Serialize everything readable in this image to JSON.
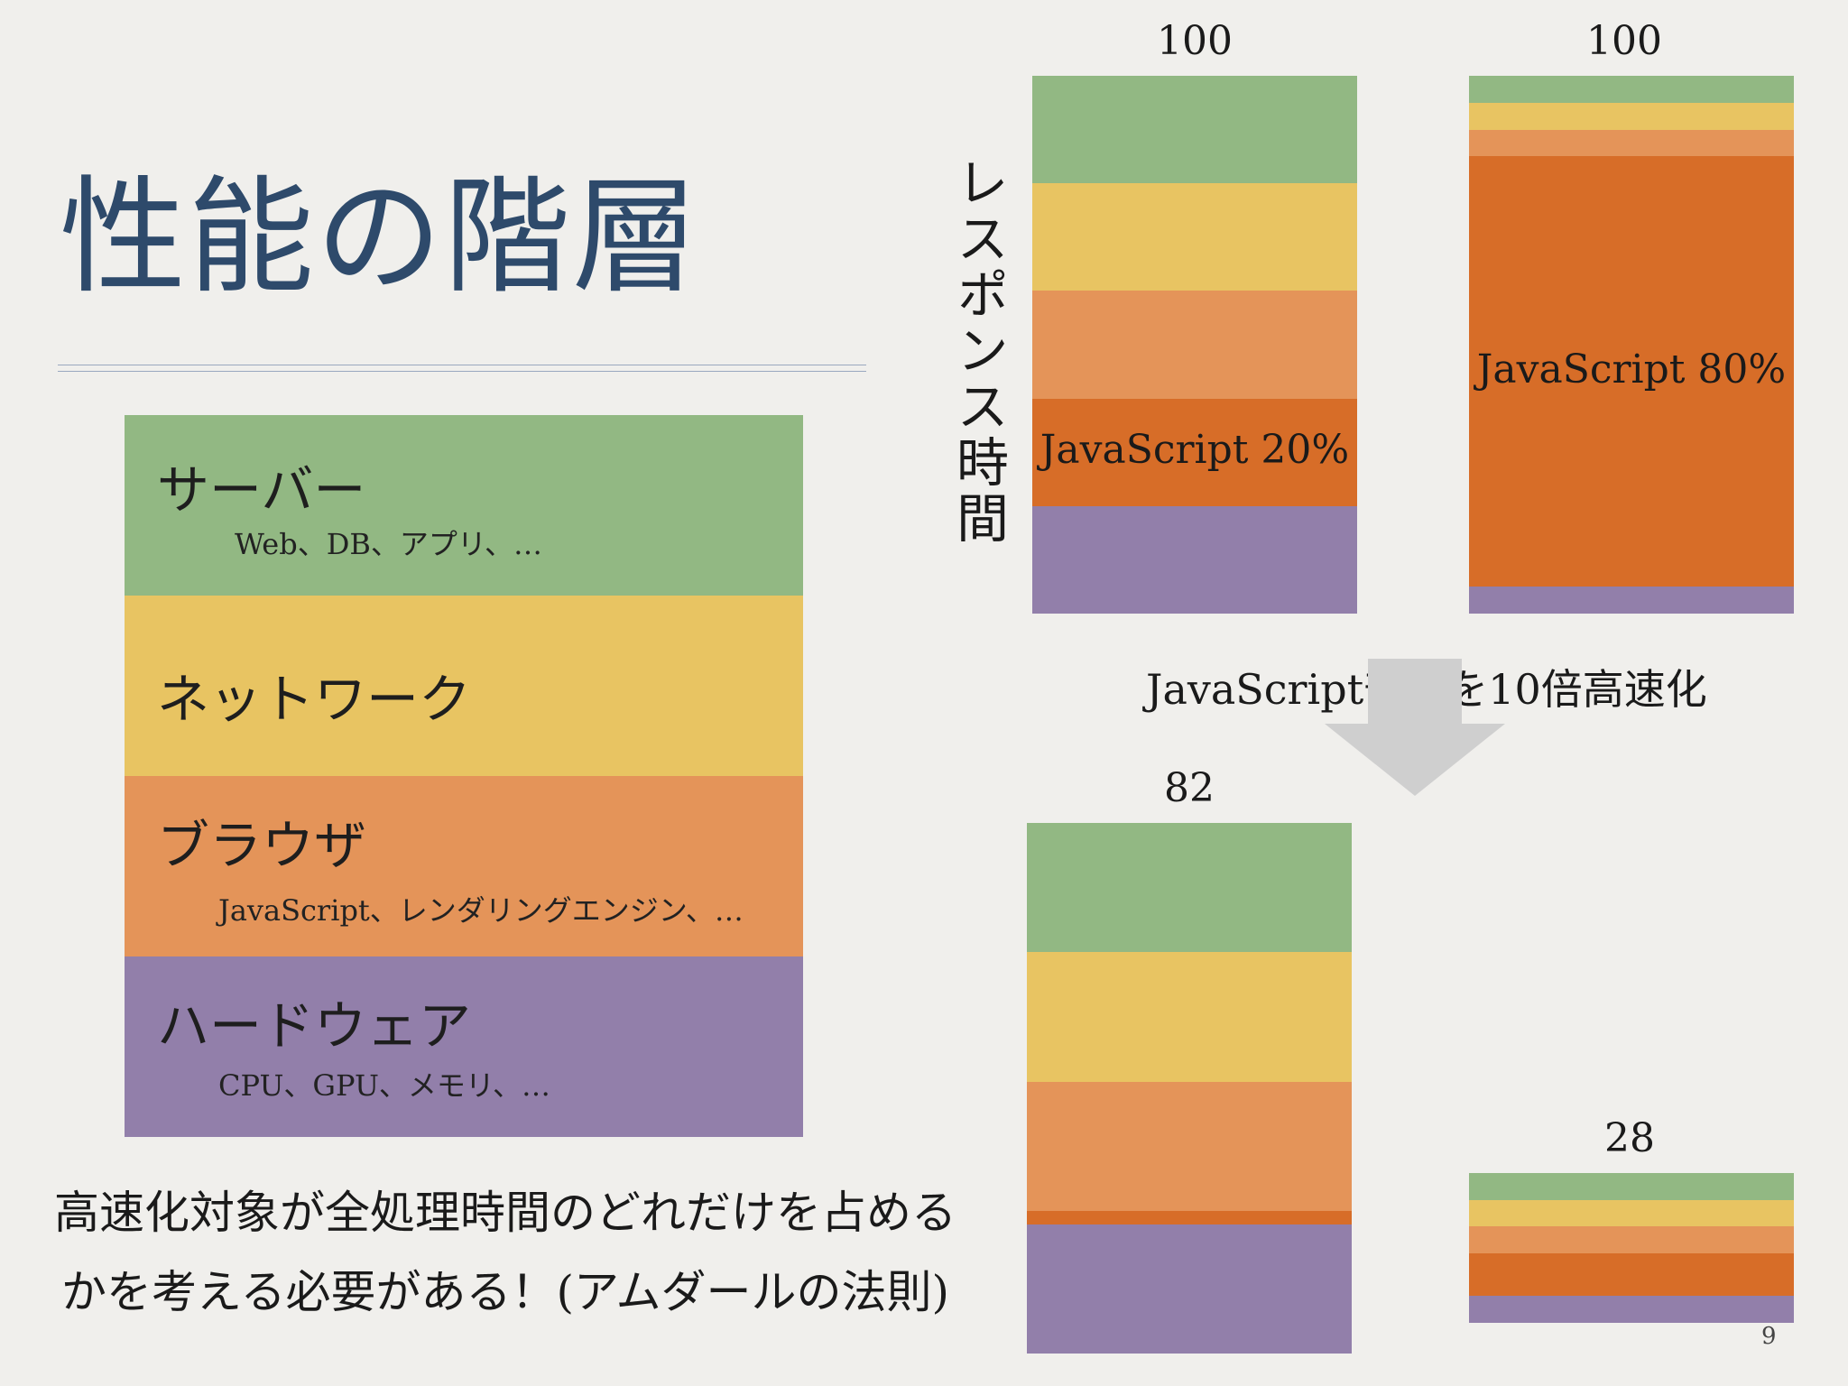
{
  "slide": {
    "title": "性能の階層",
    "page_number": "9",
    "note_line1": "高速化対象が全処理時間のどれだけを占める",
    "note_line2": "かを考える必要がある！(アムダールの法則)"
  },
  "layers": [
    {
      "name": "サーバー",
      "detail": "Web、DB、アプリ、…",
      "color": "#92b883"
    },
    {
      "name": "ネットワーク",
      "detail": "",
      "color": "#e8c462"
    },
    {
      "name": "ブラウザ",
      "detail": "JavaScript、レンダリングエンジン、…",
      "color": "#e49459"
    },
    {
      "name": "ハードウェア",
      "detail": "CPU、GPU、メモリ、…",
      "color": "#927faa"
    }
  ],
  "colors": {
    "server": "#92b883",
    "network": "#e8c462",
    "browser": "#e49459",
    "javascript": "#d76d28",
    "hardware": "#927faa",
    "arrow": "#cfcfcf"
  },
  "chart_data": {
    "type": "bar",
    "ylabel": "レスポンス時間",
    "arrow_caption": "JavaScript部分を10倍高速化",
    "bars": [
      {
        "total": "100",
        "segments": [
          {
            "layer": "server",
            "value": 20
          },
          {
            "layer": "network",
            "value": 20
          },
          {
            "layer": "browser",
            "value": 20
          },
          {
            "layer": "javascript",
            "value": 20,
            "label": "JavaScript 20%"
          },
          {
            "layer": "hardware",
            "value": 20
          }
        ]
      },
      {
        "total": "100",
        "segments": [
          {
            "layer": "server",
            "value": 5
          },
          {
            "layer": "network",
            "value": 5
          },
          {
            "layer": "browser",
            "value": 5
          },
          {
            "layer": "javascript",
            "value": 80,
            "label": "JavaScript 80%"
          },
          {
            "layer": "hardware",
            "value": 5
          }
        ]
      },
      {
        "total": "82",
        "segments": [
          {
            "layer": "server",
            "value": 20
          },
          {
            "layer": "network",
            "value": 20
          },
          {
            "layer": "browser",
            "value": 20
          },
          {
            "layer": "javascript",
            "value": 2
          },
          {
            "layer": "hardware",
            "value": 20
          }
        ]
      },
      {
        "total": "28",
        "segments": [
          {
            "layer": "server",
            "value": 5
          },
          {
            "layer": "network",
            "value": 5
          },
          {
            "layer": "browser",
            "value": 5
          },
          {
            "layer": "javascript",
            "value": 8
          },
          {
            "layer": "hardware",
            "value": 5
          }
        ]
      }
    ]
  }
}
